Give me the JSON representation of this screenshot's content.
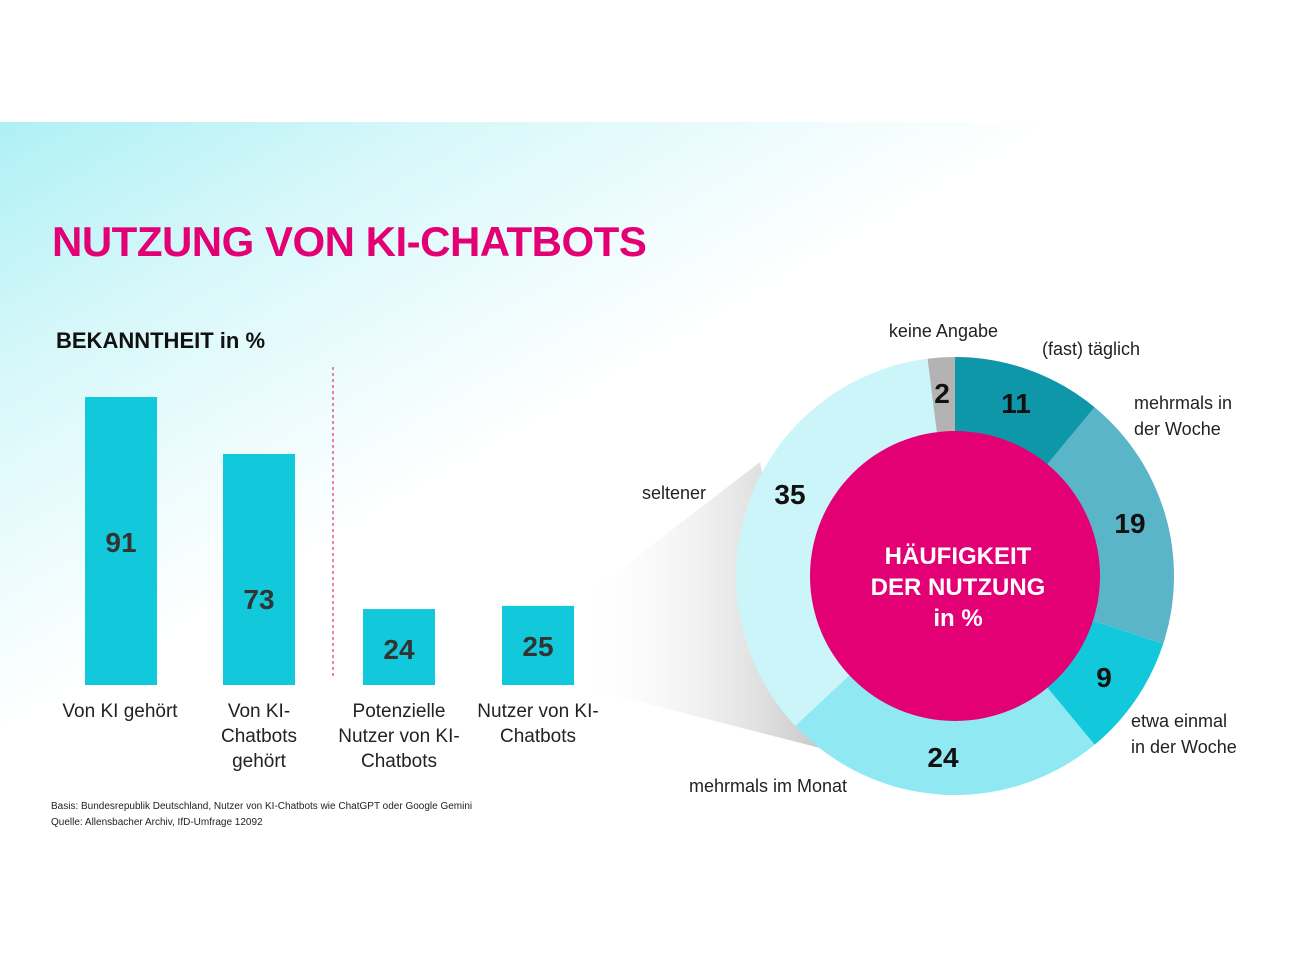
{
  "title": "NUTZUNG VON KI-CHATBOTS",
  "footnotes": {
    "basis": "Basis: Bundesrepublik Deutschland, Nutzer von KI-Chatbots wie ChatGPT oder Google Gemini",
    "source": "Quelle: Allensbacher Archiv, IfD-Umfrage 12092"
  },
  "colors": {
    "accent": "#e20074",
    "bar": "#12c9dc"
  },
  "chart_data": [
    {
      "type": "bar",
      "title": "BEKANNTHEIT in %",
      "categories": [
        [
          "Von KI gehört"
        ],
        [
          "Von KI-",
          "Chatbots",
          "gehört"
        ],
        [
          "Potenzielle",
          "Nutzer von KI-",
          "Chatbots"
        ],
        [
          "Nutzer von KI-",
          "Chatbots"
        ]
      ],
      "values": [
        91,
        73,
        24,
        25
      ],
      "ylim": [
        0,
        100
      ],
      "grid": false
    },
    {
      "type": "pie",
      "title": [
        "HÄUFIGKEIT",
        "DER NUTZUNG",
        "in %"
      ],
      "slices": [
        {
          "label": [
            "(fast) täglich"
          ],
          "value": 11,
          "color": "#0e97a8"
        },
        {
          "label": [
            "mehrmals in",
            "der Woche"
          ],
          "value": 19,
          "color": "#5bb5c8"
        },
        {
          "label": [
            "etwa einmal",
            "in der Woche"
          ],
          "value": 9,
          "color": "#12c9dc"
        },
        {
          "label": [
            "mehrmals im Monat"
          ],
          "value": 24,
          "color": "#8fe8f2"
        },
        {
          "label": [
            "seltener"
          ],
          "value": 35,
          "color": "#ccf5fa"
        },
        {
          "label": [
            "keine Angabe"
          ],
          "value": 2,
          "color": "#b3b3b3"
        }
      ]
    }
  ]
}
